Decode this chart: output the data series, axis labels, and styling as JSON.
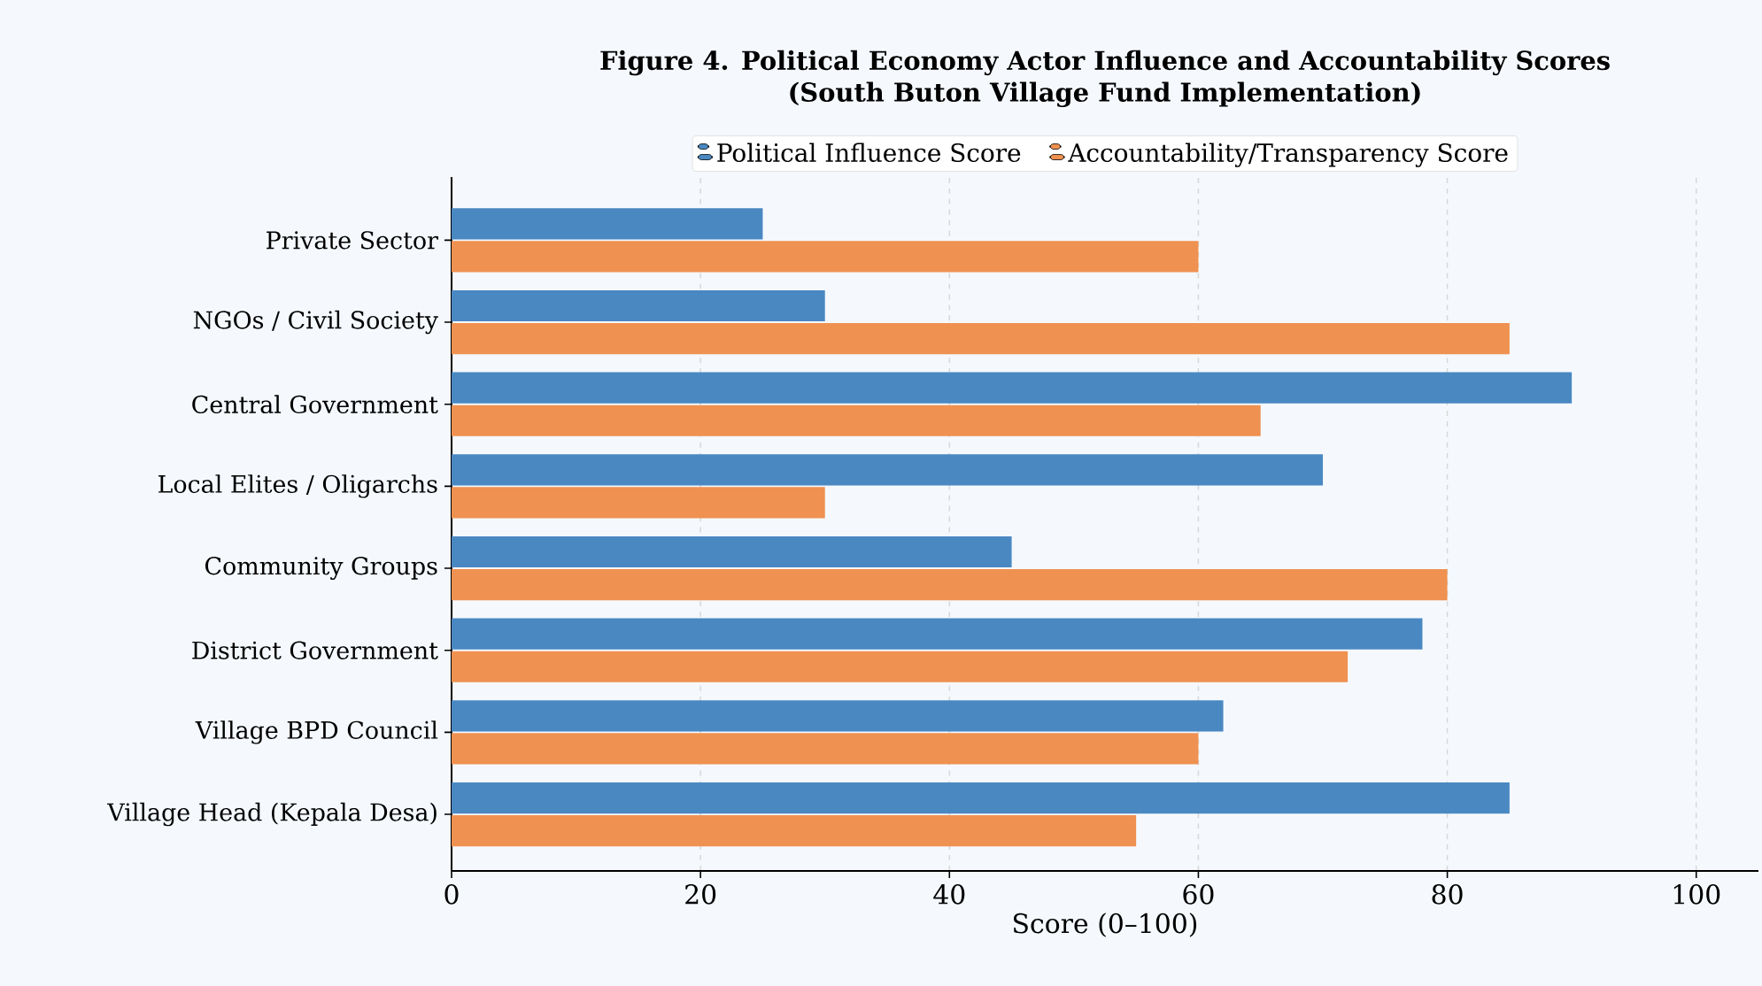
{
  "chart_data": {
    "type": "bar",
    "orientation": "horizontal",
    "title": "Figure 4. Political Economy Actor Influence and Accountability Scores",
    "subtitle": "(South Buton Village Fund Implementation)",
    "xlabel": "Score (0–100)",
    "categories": [
      "Private Sector",
      "NGOs / Civil Society",
      "Central Government",
      "Local Elites / Oligarchs",
      "Community Groups",
      "District Government",
      "Village BPD Council",
      "Village Head (Kepala Desa)"
    ],
    "series": [
      {
        "name": "Political Influence Score",
        "color": "#4a88c2",
        "values": [
          25,
          30,
          90,
          70,
          45,
          78,
          62,
          85
        ]
      },
      {
        "name": "Accountability/Transparency Score",
        "color": "#ef9150",
        "values": [
          60,
          85,
          65,
          30,
          80,
          72,
          60,
          55
        ]
      }
    ],
    "xlim": [
      0,
      105
    ],
    "xticks": [
      0,
      20,
      40,
      60,
      80,
      100
    ],
    "grid": "x",
    "legend": "top"
  }
}
